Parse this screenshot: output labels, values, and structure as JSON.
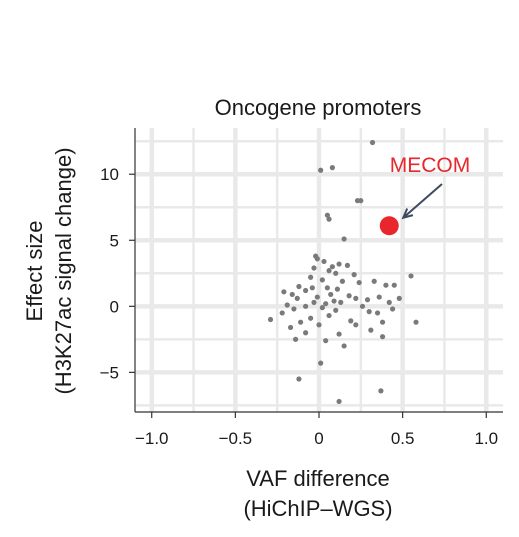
{
  "chart_data": {
    "type": "scatter",
    "title": "Oncogene promoters",
    "xlabel": [
      "VAF difference",
      "(HiChIP–WGS)"
    ],
    "ylabel": [
      "Effect size",
      "(H3K27ac signal change)"
    ],
    "xlim": [
      -1.1,
      1.1
    ],
    "ylim": [
      -8,
      13.5
    ],
    "xticks": [
      -1.0,
      -0.5,
      0,
      0.5,
      1.0
    ],
    "xtick_labels": [
      "−1.0",
      "−0.5",
      "0",
      "0.5",
      "1.0"
    ],
    "yticks": [
      -5,
      0,
      5,
      10
    ],
    "ytick_labels": [
      "−5",
      "0",
      "5",
      "10"
    ],
    "grid": true,
    "point_color": "#7a7a7a",
    "highlight_color": "#e8262b",
    "series": [
      {
        "points": [
          [
            0.32,
            12.4
          ],
          [
            0.01,
            10.3
          ],
          [
            0.08,
            10.5
          ],
          [
            0.23,
            8.0
          ],
          [
            0.25,
            8.0
          ],
          [
            0.05,
            6.9
          ],
          [
            0.06,
            6.6
          ],
          [
            0.15,
            5.1
          ],
          [
            -0.02,
            3.8
          ],
          [
            -0.01,
            3.6
          ],
          [
            0.03,
            3.4
          ],
          [
            0.12,
            3.2
          ],
          [
            0.08,
            3.0
          ],
          [
            0.17,
            3.1
          ],
          [
            -0.03,
            2.9
          ],
          [
            0.06,
            2.7
          ],
          [
            0.1,
            2.5
          ],
          [
            0.21,
            2.4
          ],
          [
            0.55,
            2.3
          ],
          [
            -0.05,
            2.2
          ],
          [
            0.02,
            2.0
          ],
          [
            0.14,
            1.9
          ],
          [
            0.24,
            1.8
          ],
          [
            0.33,
            1.9
          ],
          [
            0.4,
            1.6
          ],
          [
            0.45,
            1.6
          ],
          [
            -0.12,
            1.5
          ],
          [
            -0.04,
            1.4
          ],
          [
            0.05,
            1.4
          ],
          [
            0.11,
            1.3
          ],
          [
            -0.08,
            1.2
          ],
          [
            -0.21,
            1.1
          ],
          [
            -0.16,
            0.9
          ],
          [
            0.07,
            0.9
          ],
          [
            0.18,
            0.8
          ],
          [
            -0.01,
            0.7
          ],
          [
            0.22,
            0.6
          ],
          [
            0.36,
            0.7
          ],
          [
            -0.13,
            0.6
          ],
          [
            0.48,
            0.6
          ],
          [
            0.09,
            0.4
          ],
          [
            0.29,
            0.5
          ],
          [
            -0.03,
            0.3
          ],
          [
            0.13,
            0.3
          ],
          [
            -0.19,
            0.1
          ],
          [
            0.04,
            0.2
          ],
          [
            0.42,
            0.3
          ],
          [
            -0.08,
            0.0
          ],
          [
            0.26,
            0.0
          ],
          [
            -0.15,
            -0.2
          ],
          [
            0.02,
            -0.1
          ],
          [
            0.1,
            -0.3
          ],
          [
            0.3,
            -0.4
          ],
          [
            0.44,
            -0.2
          ],
          [
            -0.22,
            -0.5
          ],
          [
            0.06,
            -0.7
          ],
          [
            0.35,
            -0.5
          ],
          [
            -0.05,
            -0.9
          ],
          [
            0.19,
            -1.1
          ],
          [
            -0.29,
            -1.0
          ],
          [
            0.58,
            -1.2
          ],
          [
            0.38,
            -1.2
          ],
          [
            -0.11,
            -1.2
          ],
          [
            0.0,
            -1.4
          ],
          [
            0.22,
            -1.4
          ],
          [
            -0.17,
            -1.6
          ],
          [
            0.31,
            -1.8
          ],
          [
            0.12,
            -2.1
          ],
          [
            -0.08,
            -2.0
          ],
          [
            0.38,
            -2.3
          ],
          [
            -0.14,
            -2.5
          ],
          [
            0.04,
            -2.6
          ],
          [
            0.15,
            -3.0
          ],
          [
            0.01,
            -4.3
          ],
          [
            -0.12,
            -5.5
          ],
          [
            0.37,
            -6.4
          ],
          [
            0.12,
            -7.2
          ]
        ]
      }
    ],
    "highlight": {
      "label": "MECOM",
      "x": 0.42,
      "y": 6.1
    }
  }
}
